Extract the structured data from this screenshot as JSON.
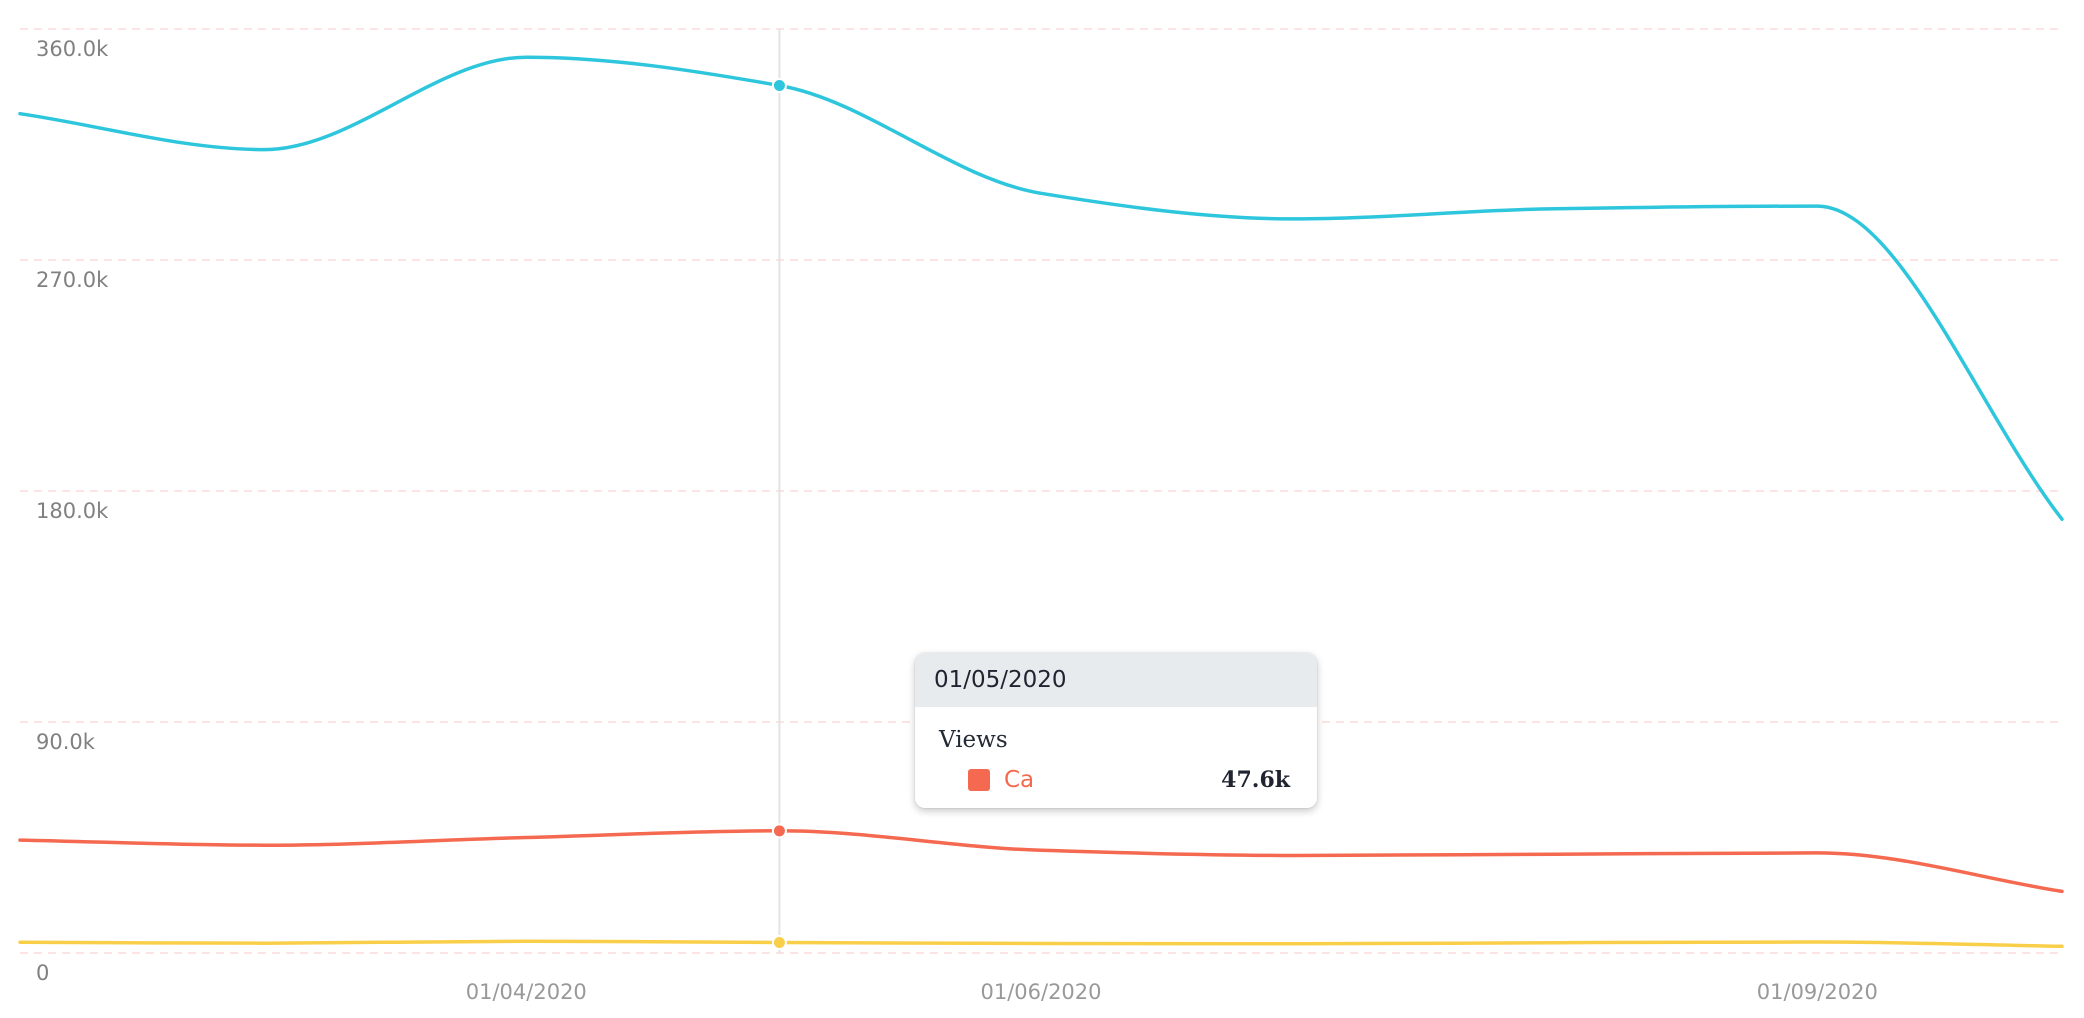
{
  "chart_data": {
    "type": "line",
    "x": [
      "2020-02-01",
      "2020-03-01",
      "2020-04-01",
      "2020-05-01",
      "2020-06-01",
      "2020-07-01",
      "2020-08-01",
      "2020-09-01",
      "2020-09-30"
    ],
    "x_ticks": [
      {
        "date": "2020-04-01",
        "label": "01/04/2020"
      },
      {
        "date": "2020-06-01",
        "label": "01/06/2020"
      },
      {
        "date": "2020-09-01",
        "label": "01/09/2020"
      }
    ],
    "ylim": [
      0,
      360000
    ],
    "y_ticks": [
      {
        "value": 0,
        "label": "0"
      },
      {
        "value": 90000,
        "label": "90.0k"
      },
      {
        "value": 180000,
        "label": "180.0k"
      },
      {
        "value": 270000,
        "label": "270.0k"
      },
      {
        "value": 360000,
        "label": "360.0k"
      }
    ],
    "series": [
      {
        "color": "#2ec6dc",
        "values": [
          327000,
          313000,
          349000,
          338000,
          296000,
          286000,
          290000,
          291000,
          169000
        ]
      },
      {
        "name": "Ca",
        "color": "#f4694f",
        "values": [
          44000,
          42000,
          45000,
          47600,
          40000,
          38000,
          38500,
          39000,
          24000
        ]
      },
      {
        "color": "#f9cf4a",
        "values": [
          4200,
          3800,
          4600,
          4100,
          3700,
          3600,
          4000,
          4300,
          2600
        ]
      }
    ],
    "grid": "horizontal dashed",
    "hover_index": 3,
    "gridline_color": "#fde3e3",
    "crosshair_color": "#e3e3e3"
  },
  "tooltip": {
    "date": "01/05/2020",
    "group": "Views",
    "series_label": "Ca",
    "series_value": "47.6k",
    "color": "#f4694f"
  }
}
